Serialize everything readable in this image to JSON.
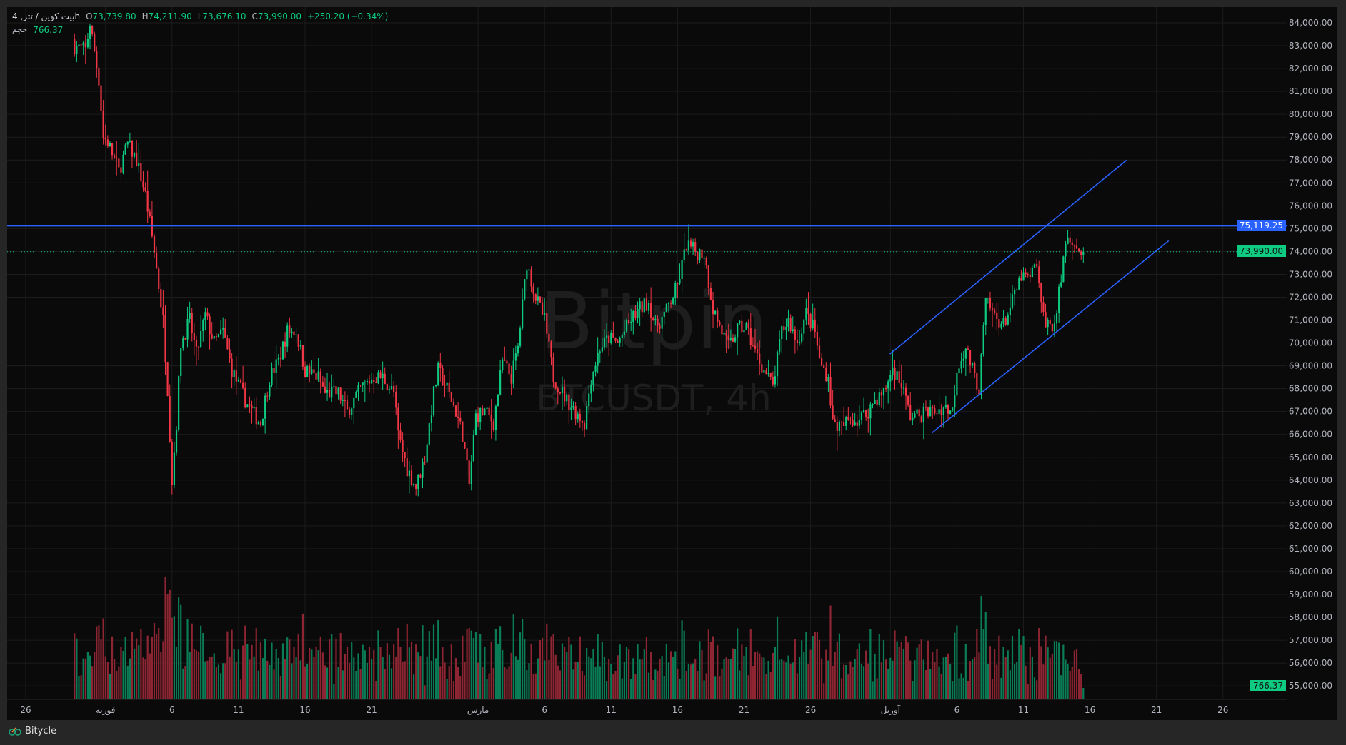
{
  "legend": {
    "symbol": "بیت کوین / تتر, 4h",
    "open_label": "O",
    "open": "73,739.80",
    "high_label": "H",
    "high": "74,211.90",
    "low_label": "L",
    "low": "73,676.10",
    "close_label": "C",
    "close": "73,990.00",
    "change": "+250.20 (+0.34%)",
    "volume_label": "حجم",
    "volume": "766.37"
  },
  "watermark": {
    "brand": "Bitpin",
    "symbol": "BTCUSDT, 4h"
  },
  "footer": {
    "brand": "Bitycle"
  },
  "colors": {
    "up": "#0ecb81",
    "down": "#f23645",
    "vol_up": "#0a7d57",
    "vol_down": "#8e2532",
    "line": "#2962ff",
    "background": "#0a0a0a"
  },
  "chart_data": {
    "type": "candlestick",
    "symbol": "BTCUSDT",
    "interval": "4h",
    "ylim": [
      54500,
      84600
    ],
    "grid": true,
    "y_ticks": [
      "84,000.00",
      "83,000.00",
      "82,000.00",
      "81,000.00",
      "80,000.00",
      "79,000.00",
      "78,000.00",
      "77,000.00",
      "76,000.00",
      "75,000.00",
      "74,000.00",
      "73,000.00",
      "72,000.00",
      "71,000.00",
      "70,000.00",
      "69,000.00",
      "68,000.00",
      "67,000.00",
      "66,000.00",
      "65,000.00",
      "64,000.00",
      "63,000.00",
      "62,000.00",
      "61,000.00",
      "60,000.00",
      "59,000.00",
      "58,000.00",
      "57,000.00",
      "56,000.00",
      "55,000.00"
    ],
    "x_ticks": [
      {
        "label": "26",
        "date": "01-26"
      },
      {
        "label": "فوریه",
        "date": "02-01"
      },
      {
        "label": "6",
        "date": "02-06"
      },
      {
        "label": "11",
        "date": "02-11"
      },
      {
        "label": "16",
        "date": "02-16"
      },
      {
        "label": "21",
        "date": "02-21"
      },
      {
        "label": "مارس",
        "date": "03-01"
      },
      {
        "label": "6",
        "date": "03-06"
      },
      {
        "label": "11",
        "date": "03-11"
      },
      {
        "label": "16",
        "date": "03-16"
      },
      {
        "label": "21",
        "date": "03-21"
      },
      {
        "label": "26",
        "date": "03-26"
      },
      {
        "label": "آوریل",
        "date": "04-01"
      },
      {
        "label": "6",
        "date": "04-06"
      },
      {
        "label": "11",
        "date": "04-11"
      },
      {
        "label": "16",
        "date": "04-16"
      },
      {
        "label": "21",
        "date": "04-21"
      },
      {
        "label": "26",
        "date": "04-26"
      }
    ],
    "close_path": [
      [
        "01-29 16:00",
        83000
      ],
      [
        "01-30 12:00",
        82800
      ],
      [
        "01-30 20:00",
        84000
      ],
      [
        "01-31 12:00",
        81500
      ],
      [
        "01-31 20:00",
        79000
      ],
      [
        "02-01 04:00",
        78800
      ],
      [
        "02-02 00:00",
        77500
      ],
      [
        "02-02 16:00",
        78700
      ],
      [
        "02-03 08:00",
        78000
      ],
      [
        "02-04 00:00",
        76500
      ],
      [
        "02-04 16:00",
        74000
      ],
      [
        "02-05 08:00",
        71000
      ],
      [
        "02-05 16:00",
        68000
      ],
      [
        "02-06 00:00",
        64000
      ],
      [
        "02-06 08:00",
        66500
      ],
      [
        "02-06 16:00",
        70000
      ],
      [
        "02-07 08:00",
        71000
      ],
      [
        "02-07 20:00",
        69500
      ],
      [
        "02-08 12:00",
        71200
      ],
      [
        "02-09 04:00",
        70000
      ],
      [
        "02-09 20:00",
        70500
      ],
      [
        "02-10 12:00",
        68800
      ],
      [
        "02-11 12:00",
        67500
      ],
      [
        "02-12 00:00",
        67000
      ],
      [
        "02-12 16:00",
        66500
      ],
      [
        "02-13 08:00",
        68500
      ],
      [
        "02-14 00:00",
        69200
      ],
      [
        "02-14 16:00",
        70500
      ],
      [
        "02-15 08:00",
        70500
      ],
      [
        "02-16 00:00",
        68800
      ],
      [
        "02-17 00:00",
        68500
      ],
      [
        "02-17 12:00",
        67800
      ],
      [
        "02-18 12:00",
        67800
      ],
      [
        "02-19 04:00",
        67000
      ],
      [
        "02-20 04:00",
        68000
      ],
      [
        "02-21 04:00",
        68500
      ],
      [
        "02-21 20:00",
        68500
      ],
      [
        "02-22 16:00",
        67800
      ],
      [
        "02-23 00:00",
        66000
      ],
      [
        "02-23 16:00",
        64500
      ],
      [
        "02-24 08:00",
        63700
      ],
      [
        "02-25 00:00",
        65000
      ],
      [
        "02-25 16:00",
        67800
      ],
      [
        "02-26 00:00",
        68800
      ],
      [
        "02-26 16:00",
        68000
      ],
      [
        "02-27 08:00",
        67000
      ],
      [
        "02-27 20:00",
        66000
      ],
      [
        "02-28 08:00",
        63800
      ],
      [
        "02-28 20:00",
        66800
      ],
      [
        "03-01 12:00",
        67000
      ],
      [
        "03-02 04:00",
        66500
      ],
      [
        "03-02 20:00",
        69200
      ],
      [
        "03-03 12:00",
        68500
      ],
      [
        "03-04 00:00",
        69800
      ],
      [
        "03-04 16:00",
        73500
      ],
      [
        "03-05 08:00",
        72000
      ],
      [
        "03-06 00:00",
        71000
      ],
      [
        "03-06 16:00",
        68500
      ],
      [
        "03-07 16:00",
        67500
      ],
      [
        "03-08 08:00",
        67000
      ],
      [
        "03-09 00:00",
        66500
      ],
      [
        "03-09 12:00",
        68500
      ],
      [
        "03-10 04:00",
        69800
      ],
      [
        "03-10 20:00",
        70200
      ],
      [
        "03-11 12:00",
        70000
      ],
      [
        "03-12 12:00",
        71000
      ],
      [
        "03-13 04:00",
        71500
      ],
      [
        "03-13 20:00",
        71800
      ],
      [
        "03-14 08:00",
        70700
      ],
      [
        "03-15 00:00",
        71200
      ],
      [
        "03-16 00:00",
        72500
      ],
      [
        "03-16 16:00",
        74300
      ],
      [
        "03-17 08:00",
        74000
      ],
      [
        "03-18 00:00",
        73900
      ],
      [
        "03-18 16:00",
        71500
      ],
      [
        "03-19 08:00",
        70500
      ],
      [
        "03-19 20:00",
        69800
      ],
      [
        "03-20 12:00",
        70600
      ],
      [
        "03-21 04:00",
        70700
      ],
      [
        "03-21 20:00",
        69600
      ],
      [
        "03-22 12:00",
        68800
      ],
      [
        "03-23 04:00",
        68100
      ],
      [
        "03-23 20:00",
        70500
      ],
      [
        "03-24 08:00",
        71000
      ],
      [
        "03-25 00:00",
        70000
      ],
      [
        "03-25 16:00",
        71300
      ],
      [
        "03-26 08:00",
        70500
      ],
      [
        "03-26 16:00",
        69200
      ],
      [
        "03-27 08:00",
        68500
      ],
      [
        "03-27 16:00",
        66500
      ],
      [
        "03-28 08:00",
        66300
      ],
      [
        "03-29 00:00",
        66700
      ],
      [
        "03-29 12:00",
        66600
      ],
      [
        "03-30 04:00",
        66900
      ],
      [
        "03-30 20:00",
        67500
      ],
      [
        "03-31 12:00",
        67800
      ],
      [
        "04-01 04:00",
        68900
      ],
      [
        "04-01 20:00",
        68200
      ],
      [
        "04-02 12:00",
        66800
      ],
      [
        "04-03 00:00",
        66800
      ],
      [
        "04-03 16:00",
        67000
      ],
      [
        "04-04 08:00",
        67000
      ],
      [
        "04-05 00:00",
        67200
      ],
      [
        "04-05 16:00",
        67000
      ],
      [
        "04-06 00:00",
        68900
      ],
      [
        "04-06 16:00",
        69800
      ],
      [
        "04-07 08:00",
        68500
      ],
      [
        "04-07 16:00",
        68000
      ],
      [
        "04-08 04:00",
        71800
      ],
      [
        "04-08 20:00",
        71200
      ],
      [
        "04-09 12:00",
        70800
      ],
      [
        "04-10 04:00",
        71800
      ],
      [
        "04-10 20:00",
        72900
      ],
      [
        "04-11 12:00",
        72800
      ],
      [
        "04-12 00:00",
        73500
      ],
      [
        "04-12 08:00",
        71500
      ],
      [
        "04-12 20:00",
        70800
      ],
      [
        "04-13 08:00",
        70800
      ],
      [
        "04-13 20:00",
        72800
      ],
      [
        "04-14 04:00",
        74500
      ],
      [
        "04-14 16:00",
        74600
      ],
      [
        "04-15 04:00",
        74000
      ],
      [
        "04-15 12:00",
        73990
      ]
    ],
    "last_price": 73990.0,
    "last_price_label": "73,990.00",
    "last_volume": 766.37,
    "last_volume_label": "766.37",
    "drawings": {
      "horizontal_line": {
        "price": 75119.25,
        "label": "75,119.25"
      },
      "channel_upper": [
        [
          "03-31 23:00",
          69516
        ],
        [
          "04-18 18:00",
          77996
        ]
      ],
      "channel_lower": [
        [
          "04-04 03:00",
          66064
        ],
        [
          "04-21 22:00",
          74469
        ]
      ]
    }
  }
}
